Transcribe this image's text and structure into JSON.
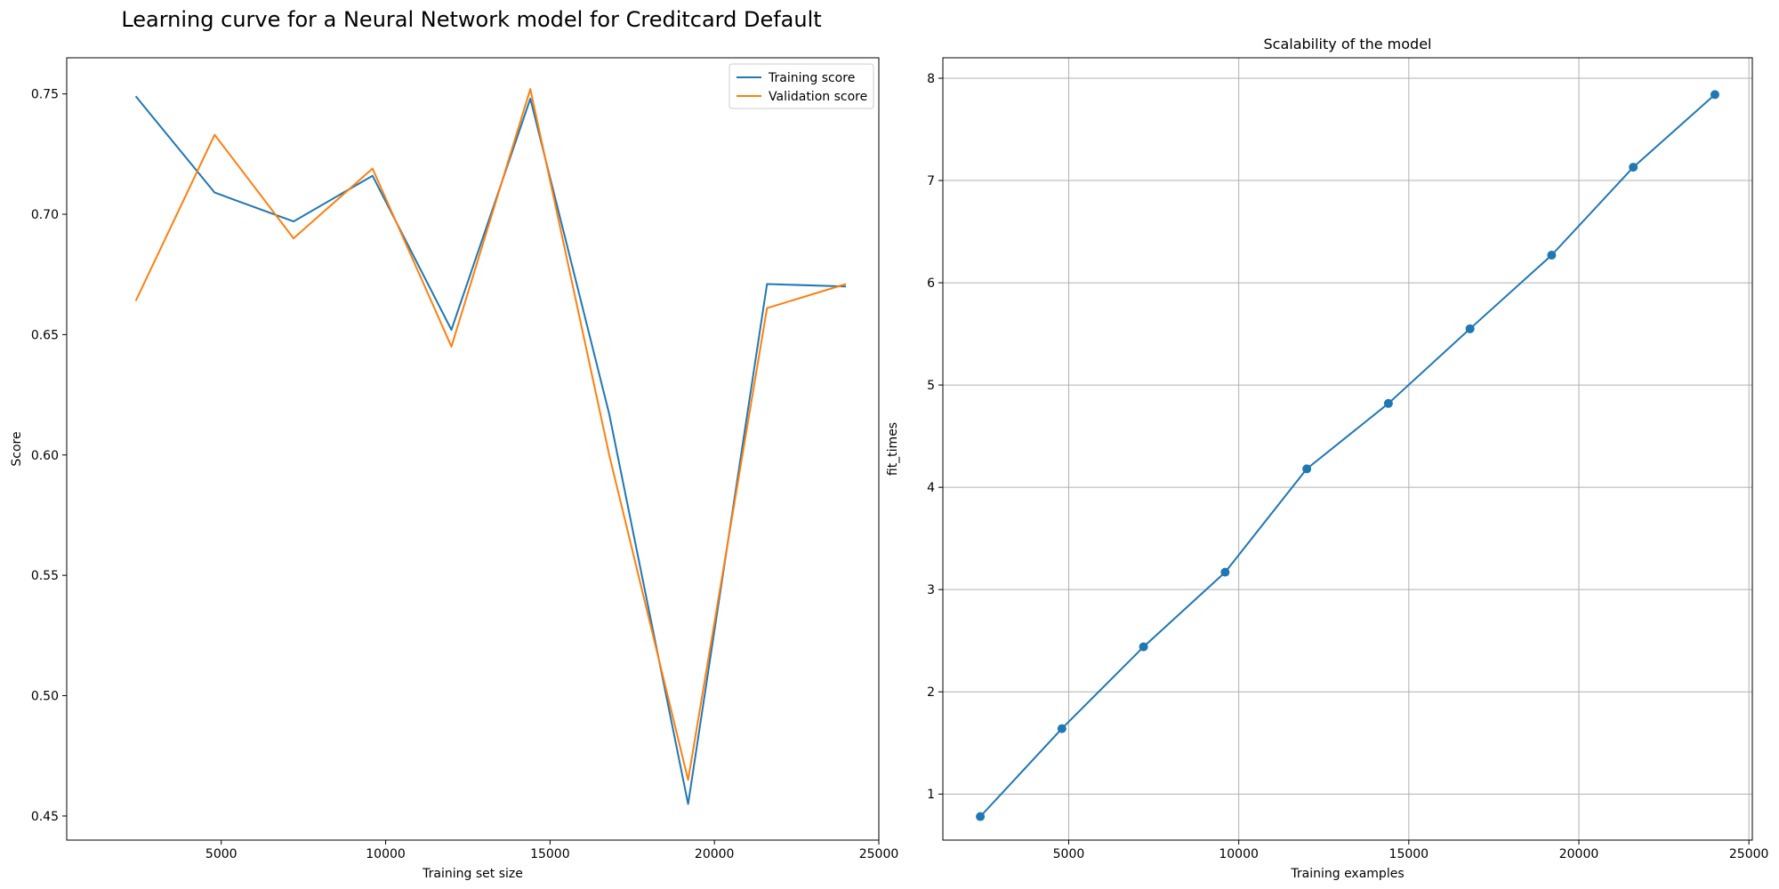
{
  "figure": {
    "suptitle": "Learning curve for a Neural Network model for Creditcard Default"
  },
  "chart_data": [
    {
      "type": "line",
      "title": "",
      "xlabel": "Training set size",
      "ylabel": "Score",
      "x": [
        2400,
        4800,
        7200,
        9600,
        12000,
        14400,
        16800,
        19200,
        21600,
        24000
      ],
      "xlim": [
        300,
        25000
      ],
      "ylim": [
        0.44,
        0.765
      ],
      "xticks": [
        5000,
        10000,
        15000,
        20000,
        25000
      ],
      "yticks": [
        0.45,
        0.5,
        0.55,
        0.6,
        0.65,
        0.7,
        0.75
      ],
      "ytick_labels": [
        "0.45",
        "0.50",
        "0.55",
        "0.60",
        "0.65",
        "0.70",
        "0.75"
      ],
      "grid": false,
      "legend": "top-right",
      "series": [
        {
          "name": "Training score",
          "color": "#1f77b4",
          "values": [
            0.749,
            0.709,
            0.697,
            0.716,
            0.652,
            0.748,
            0.617,
            0.455,
            0.671,
            0.67
          ]
        },
        {
          "name": "Validation score",
          "color": "#ff7f0e",
          "values": [
            0.664,
            0.733,
            0.69,
            0.719,
            0.645,
            0.752,
            0.6,
            0.465,
            0.661,
            0.671
          ]
        }
      ]
    },
    {
      "type": "line",
      "title": "Scalability of the model",
      "xlabel": "Training examples",
      "ylabel": "fit_times",
      "x": [
        2400,
        4800,
        7200,
        9600,
        12000,
        14400,
        16800,
        19200,
        21600,
        24000
      ],
      "xlim": [
        1300,
        25100
      ],
      "ylim": [
        0.55,
        8.2
      ],
      "xticks": [
        5000,
        10000,
        15000,
        20000,
        25000
      ],
      "yticks": [
        1,
        2,
        3,
        4,
        5,
        6,
        7,
        8
      ],
      "ytick_labels": [
        "1",
        "2",
        "3",
        "4",
        "5",
        "6",
        "7",
        "8"
      ],
      "grid": true,
      "markers": true,
      "series": [
        {
          "color": "#1f77b4",
          "values": [
            0.78,
            1.64,
            2.44,
            3.17,
            4.18,
            4.82,
            5.55,
            6.27,
            7.13,
            7.84
          ]
        }
      ]
    }
  ]
}
